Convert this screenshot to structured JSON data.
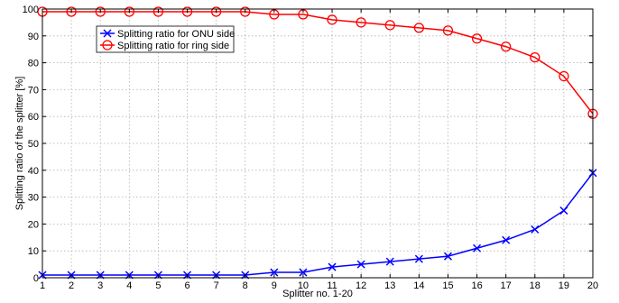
{
  "chart_data": {
    "type": "line",
    "title": "",
    "xlabel": "Splitter no. 1-20",
    "ylabel": "Splitting ratio of the splitter [%]",
    "xlim": [
      1,
      20
    ],
    "ylim": [
      0,
      100
    ],
    "xticks": [
      1,
      2,
      3,
      4,
      5,
      6,
      7,
      8,
      9,
      10,
      11,
      12,
      13,
      14,
      15,
      16,
      17,
      18,
      19,
      20
    ],
    "yticks": [
      0,
      10,
      20,
      30,
      40,
      50,
      60,
      70,
      80,
      90,
      100
    ],
    "grid": true,
    "legend_position": "top-left",
    "x": [
      1,
      2,
      3,
      4,
      5,
      6,
      7,
      8,
      9,
      10,
      11,
      12,
      13,
      14,
      15,
      16,
      17,
      18,
      19,
      20
    ],
    "series": [
      {
        "name": "Splitting ratio for ONU side",
        "color": "#0000ff",
        "marker": "x",
        "values": [
          1,
          1,
          1,
          1,
          1,
          1,
          1,
          1,
          2,
          2,
          4,
          5,
          6,
          7,
          8,
          11,
          14,
          18,
          25,
          39
        ]
      },
      {
        "name": "Splitting ratio for ring side",
        "color": "#ff0000",
        "marker": "circle",
        "values": [
          99,
          99,
          99,
          99,
          99,
          99,
          99,
          99,
          98,
          98,
          96,
          95,
          94,
          93,
          92,
          89,
          86,
          82,
          75,
          61
        ]
      }
    ]
  }
}
